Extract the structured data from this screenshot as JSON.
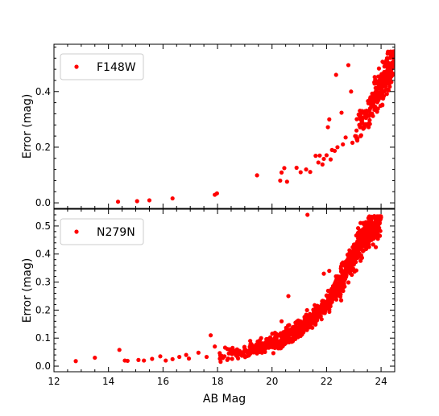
{
  "chart_data": [
    {
      "type": "scatter",
      "panel": "top",
      "series": [
        {
          "name": "F148W",
          "color": "#ff0000"
        }
      ],
      "xlabel": "",
      "ylabel": "Error (mag)",
      "xlim": [
        12,
        24.5
      ],
      "ylim": [
        -0.02,
        0.57
      ],
      "yticks": [
        0.0,
        0.2,
        0.4
      ],
      "ytick_labels": [
        "0.0",
        "0.2",
        "0.4"
      ],
      "legend": "top-left",
      "grid": false,
      "points": [
        [
          14.35,
          0.004
        ],
        [
          15.05,
          0.006
        ],
        [
          15.5,
          0.009
        ],
        [
          16.35,
          0.016
        ],
        [
          17.9,
          0.029
        ],
        [
          17.98,
          0.034
        ],
        [
          19.45,
          0.099
        ],
        [
          20.3,
          0.08
        ],
        [
          20.35,
          0.109
        ],
        [
          20.45,
          0.125
        ],
        [
          20.55,
          0.076
        ],
        [
          20.9,
          0.126
        ],
        [
          21.05,
          0.11
        ],
        [
          21.25,
          0.12
        ],
        [
          21.4,
          0.111
        ],
        [
          21.6,
          0.169
        ],
        [
          21.7,
          0.145
        ],
        [
          21.85,
          0.138
        ],
        [
          22.0,
          0.171
        ],
        [
          22.05,
          0.272
        ],
        [
          22.15,
          0.156
        ],
        [
          22.3,
          0.187
        ],
        [
          22.55,
          0.324
        ],
        [
          22.7,
          0.235
        ],
        [
          22.8,
          0.495
        ],
        [
          22.95,
          0.216
        ],
        [
          21.75,
          0.17
        ],
        [
          21.9,
          0.158
        ],
        [
          22.2,
          0.19
        ],
        [
          22.4,
          0.2
        ],
        [
          22.6,
          0.21
        ],
        [
          23.05,
          0.24
        ],
        [
          23.1,
          0.26
        ],
        [
          23.2,
          0.28
        ],
        [
          23.25,
          0.24
        ],
        [
          23.3,
          0.33
        ],
        [
          22.35,
          0.46
        ],
        [
          22.9,
          0.4
        ],
        [
          22.1,
          0.3
        ]
      ],
      "dense_region": {
        "x_min": 23.0,
        "x_max": 24.5,
        "trend": [
          [
            23.0,
            0.25
          ],
          [
            23.5,
            0.32
          ],
          [
            24.0,
            0.42
          ],
          [
            24.5,
            0.54
          ]
        ],
        "scatter": 0.07,
        "count": 260
      }
    },
    {
      "type": "scatter",
      "panel": "bottom",
      "series": [
        {
          "name": "N279N",
          "color": "#ff0000"
        }
      ],
      "xlabel": "AB Mag",
      "ylabel": "Error (mag)",
      "xlim": [
        12,
        24.5
      ],
      "ylim": [
        -0.02,
        0.56
      ],
      "xticks": [
        12,
        14,
        16,
        18,
        20,
        22,
        24
      ],
      "xtick_labels": [
        "12",
        "14",
        "16",
        "18",
        "20",
        "22",
        "24"
      ],
      "yticks": [
        0.0,
        0.1,
        0.2,
        0.3,
        0.4,
        0.5
      ],
      "ytick_labels": [
        "0.0",
        "0.1",
        "0.2",
        "0.3",
        "0.4",
        "0.5"
      ],
      "legend": "top-left",
      "grid": false,
      "points": [
        [
          12.8,
          0.018
        ],
        [
          13.5,
          0.03
        ],
        [
          14.4,
          0.058
        ],
        [
          14.6,
          0.02
        ],
        [
          14.7,
          0.019
        ],
        [
          15.1,
          0.022
        ],
        [
          15.3,
          0.02
        ],
        [
          15.6,
          0.026
        ],
        [
          15.9,
          0.035
        ],
        [
          16.1,
          0.02
        ],
        [
          16.35,
          0.025
        ],
        [
          16.6,
          0.033
        ],
        [
          16.85,
          0.04
        ],
        [
          16.95,
          0.027
        ],
        [
          17.3,
          0.048
        ],
        [
          17.6,
          0.033
        ],
        [
          17.75,
          0.11
        ],
        [
          17.9,
          0.07
        ],
        [
          18.1,
          0.039
        ],
        [
          19.4,
          0.07
        ],
        [
          19.2,
          0.09
        ],
        [
          20.35,
          0.16
        ],
        [
          20.6,
          0.25
        ],
        [
          21.3,
          0.54
        ],
        [
          21.9,
          0.33
        ],
        [
          22.1,
          0.34
        ],
        [
          22.35,
          0.32
        ],
        [
          22.6,
          0.37
        ],
        [
          19.6,
          0.1
        ],
        [
          19.0,
          0.06
        ]
      ],
      "dense_region": {
        "x_min": 17.8,
        "x_max": 24.0,
        "trend": [
          [
            17.8,
            0.035
          ],
          [
            19.0,
            0.05
          ],
          [
            20.0,
            0.08
          ],
          [
            21.0,
            0.13
          ],
          [
            22.0,
            0.22
          ],
          [
            22.5,
            0.3
          ],
          [
            23.0,
            0.4
          ],
          [
            23.5,
            0.48
          ],
          [
            24.0,
            0.53
          ]
        ],
        "scatter": 0.06,
        "count": 1100
      }
    }
  ]
}
